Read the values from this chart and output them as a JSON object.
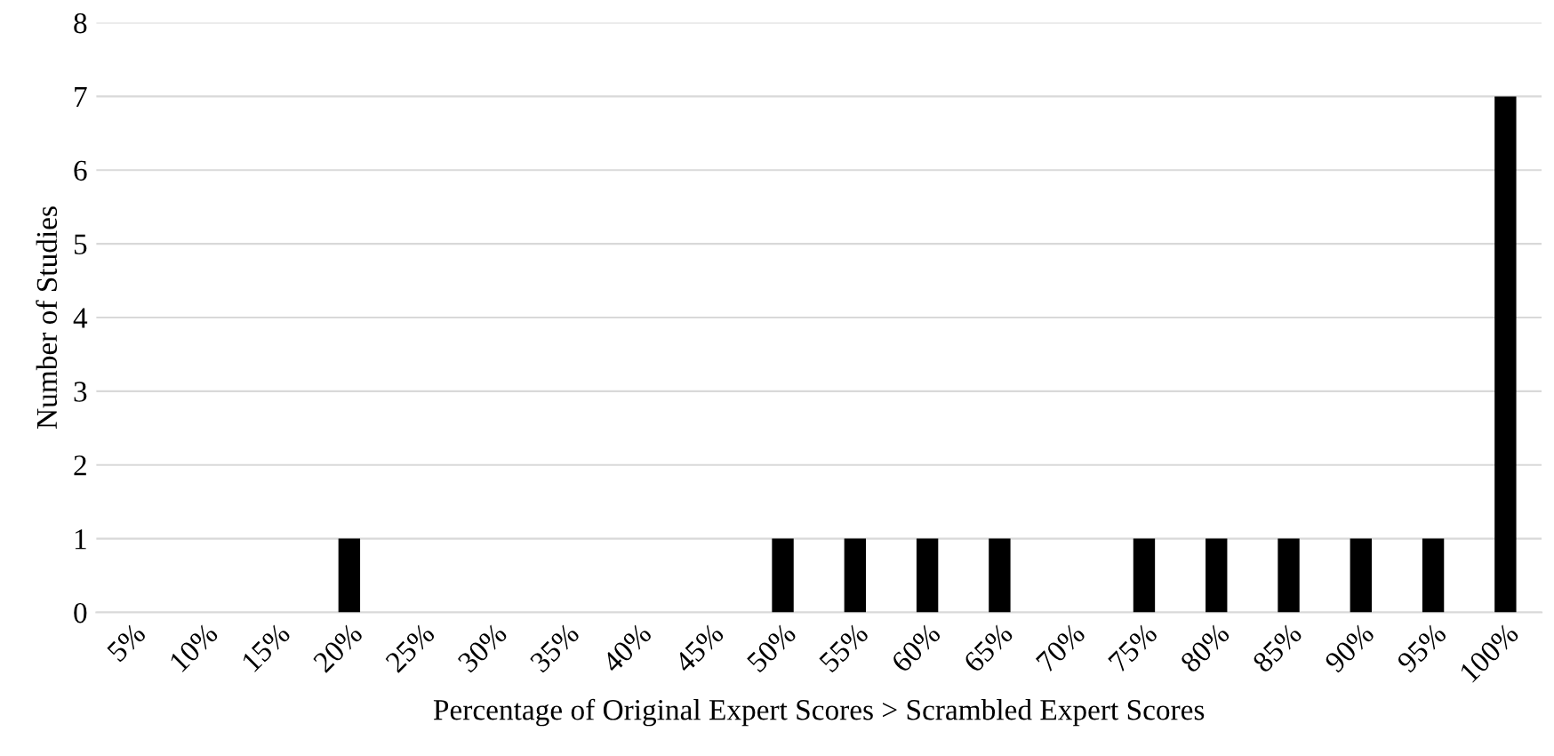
{
  "chart_data": {
    "type": "bar",
    "xlabel": "Percentage of Original Expert Scores > Scrambled Expert Scores",
    "ylabel": "Number of Studies",
    "categories": [
      "5%",
      "10%",
      "15%",
      "20%",
      "25%",
      "30%",
      "35%",
      "40%",
      "45%",
      "50%",
      "55%",
      "60%",
      "65%",
      "70%",
      "75%",
      "80%",
      "85%",
      "90%",
      "95%",
      "100%"
    ],
    "values": [
      0,
      0,
      0,
      1,
      0,
      0,
      0,
      0,
      0,
      1,
      1,
      1,
      1,
      0,
      1,
      1,
      1,
      1,
      1,
      7
    ],
    "color": "#000000",
    "ylim": [
      0,
      8
    ],
    "yticks": [
      0,
      1,
      2,
      3,
      4,
      5,
      6,
      7,
      8
    ],
    "grid": "y"
  }
}
